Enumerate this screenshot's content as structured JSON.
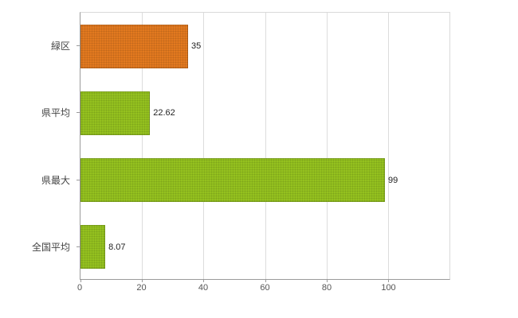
{
  "chart_data": {
    "type": "bar",
    "orientation": "horizontal",
    "title": "",
    "xlabel": "",
    "ylabel": "",
    "categories": [
      "緑区",
      "県平均",
      "県最大",
      "全国平均"
    ],
    "values": [
      35,
      22.62,
      99,
      8.07
    ],
    "value_labels": [
      "35",
      "22.62",
      "99",
      "8.07"
    ],
    "bar_colors": [
      "#e2791f",
      "#94c11f",
      "#94c11f",
      "#94c11f"
    ],
    "xlim": [
      0,
      120
    ],
    "xticks": [
      0,
      20,
      40,
      60,
      80,
      100
    ],
    "grid": "vertical",
    "legend": "none"
  },
  "colors": {
    "background": "#ffffff",
    "gridline": "#dcdcdc",
    "axis": "#9a9a9a",
    "orange_bar": "#e2791f",
    "green_bar": "#94c11f",
    "label_text": "#444444",
    "tick_text": "#555555",
    "value_text": "#222222"
  }
}
